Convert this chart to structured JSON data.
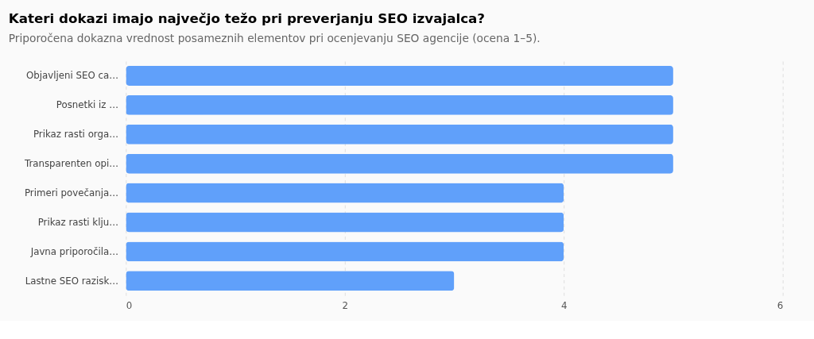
{
  "chart_data": {
    "type": "bar",
    "orientation": "horizontal",
    "title": "Kateri dokazi imajo največjo težo pri preverjanju SEO izvajalca?",
    "subtitle": "Priporočena dokazna vrednost posameznih elementov pri ocenjevanju SEO agencije (ocena 1–5).",
    "categories": [
      "Objavljeni SEO ca…",
      "Posnetki iz …",
      "Prikaz rasti orga…",
      "Transparenten opi…",
      "Primeri povečanja…",
      "Prikaz rasti klju…",
      "Javna priporočila…",
      "Lastne SEO razisk…"
    ],
    "values": [
      5,
      5,
      5,
      5,
      4,
      4,
      4,
      3
    ],
    "color": "#60a0fa",
    "xlim": [
      0,
      6
    ],
    "xticks": [
      0,
      2,
      4,
      6
    ],
    "grid": "x"
  }
}
